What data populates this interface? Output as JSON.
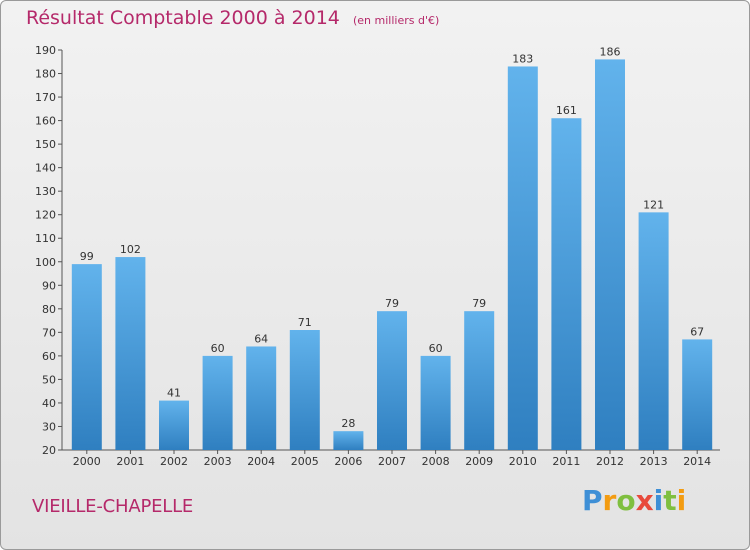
{
  "title": "Résultat Comptable 2000 à 2014",
  "subtitle": "(en milliers d'€)",
  "commune": "VIEILLE-CHAPELLE",
  "logo": {
    "text": "Proxiti",
    "letters": [
      "P",
      "r",
      "o",
      "x",
      "i",
      "t",
      "i"
    ],
    "colors": [
      "#3e8fd6",
      "#f39c12",
      "#7fbf3f",
      "#e84a3c",
      "#3e8fd6",
      "#7fbf3f",
      "#f39c12"
    ]
  },
  "colors": {
    "accent": "#b5296a",
    "bar_top": "#62b3ec",
    "bar_bottom": "#2f7fc0",
    "axis_text": "#333333"
  },
  "chart_data": {
    "type": "bar",
    "categories": [
      "2000",
      "2001",
      "2002",
      "2003",
      "2004",
      "2005",
      "2006",
      "2007",
      "2008",
      "2009",
      "2010",
      "2011",
      "2012",
      "2013",
      "2014"
    ],
    "values": [
      99,
      102,
      41,
      60,
      64,
      71,
      28,
      79,
      60,
      79,
      183,
      161,
      186,
      121,
      67
    ],
    "title": "Résultat Comptable 2000 à 2014",
    "subtitle": "(en milliers d'€)",
    "xlabel": "",
    "ylabel": "",
    "ylim": [
      20,
      190
    ],
    "yticks": [
      20,
      30,
      40,
      50,
      60,
      70,
      80,
      90,
      100,
      110,
      120,
      130,
      140,
      150,
      160,
      170,
      180,
      190
    ],
    "grid": false,
    "data_labels": true
  }
}
